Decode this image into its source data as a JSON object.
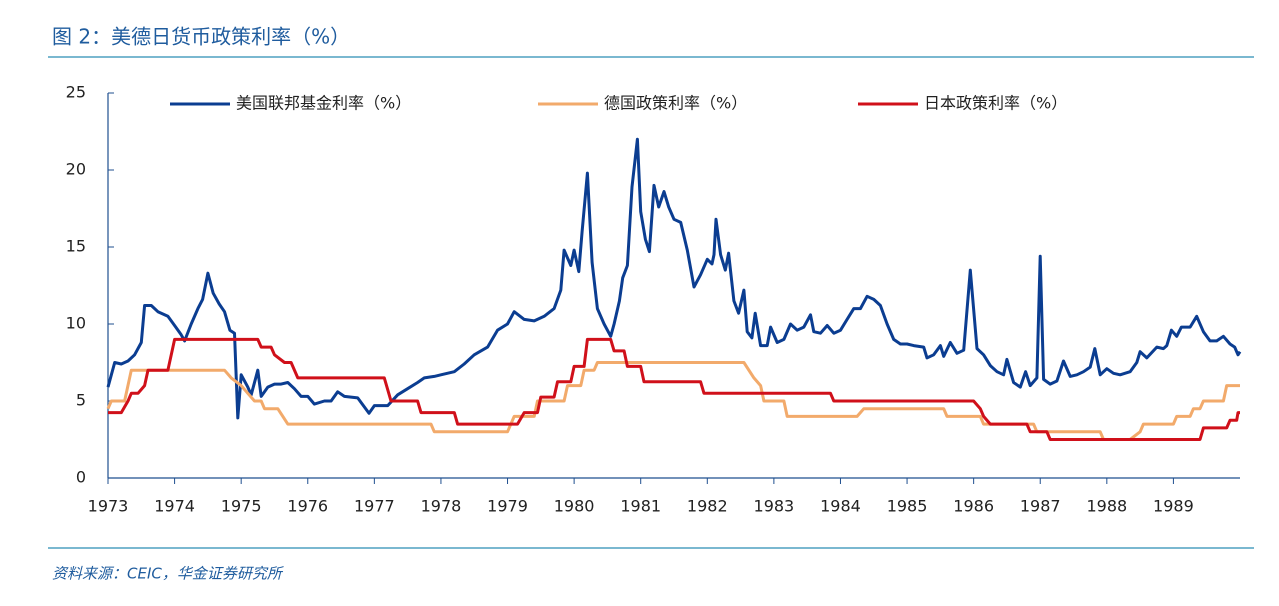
{
  "chart_data": {
    "type": "line",
    "title": "图 2：美德日货币政策利率（%）",
    "source": "资料来源：CEIC，华金证券研究所",
    "xlim": [
      1973,
      1990
    ],
    "xticks": [
      1973,
      1974,
      1975,
      1976,
      1977,
      1978,
      1979,
      1980,
      1981,
      1982,
      1983,
      1984,
      1985,
      1986,
      1987,
      1988,
      1989
    ],
    "ylim": [
      0,
      25
    ],
    "yticks": [
      0,
      5,
      10,
      15,
      20,
      25
    ],
    "grid": false,
    "legend": "top",
    "series": [
      {
        "name": "美国联邦基金利率（%）",
        "color": "#0b3d91",
        "x": [
          1973.0,
          1973.1,
          1973.2,
          1973.3,
          1973.4,
          1973.5,
          1973.55,
          1973.65,
          1973.75,
          1973.9,
          1974.0,
          1974.1,
          1974.15,
          1974.25,
          1974.35,
          1974.42,
          1974.5,
          1974.58,
          1974.67,
          1974.75,
          1974.83,
          1974.9,
          1974.95,
          1975.0,
          1975.1,
          1975.15,
          1975.25,
          1975.3,
          1975.4,
          1975.5,
          1975.6,
          1975.7,
          1975.8,
          1975.9,
          1976.0,
          1976.1,
          1976.25,
          1976.35,
          1976.45,
          1976.55,
          1976.75,
          1976.92,
          1977.0,
          1977.2,
          1977.35,
          1977.5,
          1977.65,
          1977.75,
          1977.9,
          1978.0,
          1978.2,
          1978.35,
          1978.5,
          1978.7,
          1978.85,
          1979.0,
          1979.1,
          1979.25,
          1979.4,
          1979.55,
          1979.7,
          1979.8,
          1979.85,
          1979.95,
          1980.0,
          1980.07,
          1980.12,
          1980.2,
          1980.27,
          1980.35,
          1980.45,
          1980.55,
          1980.6,
          1980.68,
          1980.73,
          1980.8,
          1980.87,
          1980.95,
          1981.0,
          1981.07,
          1981.13,
          1981.2,
          1981.27,
          1981.35,
          1981.42,
          1981.5,
          1981.6,
          1981.7,
          1981.8,
          1981.9,
          1982.0,
          1982.07,
          1982.1,
          1982.13,
          1982.2,
          1982.27,
          1982.32,
          1982.4,
          1982.47,
          1982.55,
          1982.6,
          1982.67,
          1982.72,
          1982.8,
          1982.9,
          1982.95,
          1983.05,
          1983.15,
          1983.25,
          1983.35,
          1983.45,
          1983.55,
          1983.6,
          1983.7,
          1983.8,
          1983.9,
          1984.0,
          1984.1,
          1984.2,
          1984.3,
          1984.4,
          1984.5,
          1984.6,
          1984.7,
          1984.8,
          1984.9,
          1985.0,
          1985.1,
          1985.25,
          1985.3,
          1985.4,
          1985.5,
          1985.55,
          1985.65,
          1985.75,
          1985.85,
          1985.95,
          1986.05,
          1986.15,
          1986.25,
          1986.35,
          1986.45,
          1986.5,
          1986.6,
          1986.7,
          1986.78,
          1986.85,
          1986.95,
          1987.0,
          1987.05,
          1987.15,
          1987.25,
          1987.35,
          1987.45,
          1987.55,
          1987.65,
          1987.75,
          1987.82,
          1987.9,
          1988.0,
          1988.1,
          1988.2,
          1988.35,
          1988.45,
          1988.5,
          1988.6,
          1988.75,
          1988.85,
          1988.9,
          1988.97,
          1989.05,
          1989.12,
          1989.25,
          1989.35,
          1989.45,
          1989.55,
          1989.65,
          1989.75,
          1989.85,
          1989.92,
          1989.97,
          1990.0
        ],
        "values": [
          5.9,
          7.5,
          7.4,
          7.6,
          8.0,
          8.8,
          11.2,
          11.2,
          10.8,
          10.5,
          9.9,
          9.3,
          8.9,
          10.0,
          11.0,
          11.6,
          13.3,
          12.0,
          11.3,
          10.8,
          9.6,
          9.4,
          3.9,
          6.7,
          5.9,
          5.4,
          7.0,
          5.3,
          5.9,
          6.1,
          6.1,
          6.2,
          5.8,
          5.3,
          5.3,
          4.8,
          5.0,
          5.0,
          5.6,
          5.3,
          5.2,
          4.2,
          4.7,
          4.7,
          5.4,
          5.8,
          6.2,
          6.5,
          6.6,
          6.7,
          6.9,
          7.4,
          8.0,
          8.5,
          9.6,
          10.0,
          10.8,
          10.3,
          10.2,
          10.5,
          11.0,
          12.2,
          14.8,
          13.8,
          14.8,
          13.4,
          16.0,
          19.8,
          14.0,
          11.0,
          10.0,
          9.2,
          10.0,
          11.5,
          13.0,
          13.8,
          18.9,
          22.0,
          17.3,
          15.5,
          14.7,
          19.0,
          17.6,
          18.6,
          17.6,
          16.8,
          16.6,
          14.8,
          12.4,
          13.2,
          14.2,
          13.9,
          14.5,
          16.8,
          14.5,
          13.5,
          14.6,
          11.5,
          10.7,
          12.2,
          9.5,
          9.1,
          10.7,
          8.6,
          8.6,
          9.8,
          8.8,
          9.0,
          10.0,
          9.6,
          9.8,
          10.6,
          9.5,
          9.4,
          9.9,
          9.4,
          9.6,
          10.3,
          11.0,
          11.0,
          11.8,
          11.6,
          11.2,
          10.0,
          9.0,
          8.7,
          8.7,
          8.6,
          8.5,
          7.8,
          8.0,
          8.6,
          7.9,
          8.8,
          8.1,
          8.3,
          13.5,
          8.4,
          8.0,
          7.3,
          6.9,
          6.7,
          7.7,
          6.2,
          5.9,
          6.9,
          6.0,
          6.5,
          14.4,
          6.4,
          6.1,
          6.3,
          7.6,
          6.6,
          6.7,
          6.9,
          7.2,
          8.4,
          6.7,
          7.1,
          6.8,
          6.7,
          6.9,
          7.5,
          8.2,
          7.8,
          8.5,
          8.4,
          8.6,
          9.6,
          9.2,
          9.8,
          9.8,
          10.5,
          9.5,
          8.9,
          8.9,
          9.2,
          8.7,
          8.5,
          8.0,
          8.2
        ]
      },
      {
        "name": "德国政策利率（%）",
        "color": "#f2aa6b",
        "x": [
          1973.0,
          1973.05,
          1973.25,
          1973.35,
          1974.75,
          1974.85,
          1975.0,
          1975.1,
          1975.2,
          1975.3,
          1975.35,
          1975.55,
          1975.7,
          1977.85,
          1977.9,
          1979.0,
          1979.1,
          1979.4,
          1979.45,
          1979.85,
          1979.9,
          1980.1,
          1980.15,
          1980.3,
          1980.35,
          1982.55,
          1982.7,
          1982.8,
          1982.85,
          1983.15,
          1983.2,
          1984.25,
          1984.35,
          1985.55,
          1985.6,
          1986.1,
          1986.15,
          1986.9,
          1986.95,
          1987.9,
          1987.95,
          1988.35,
          1988.5,
          1988.55,
          1989.0,
          1989.05,
          1989.25,
          1989.3,
          1989.4,
          1989.45,
          1989.75,
          1989.8,
          1990.0
        ],
        "values": [
          4.5,
          5.0,
          5.0,
          7.0,
          7.0,
          6.5,
          6.0,
          5.5,
          5.0,
          5.0,
          4.5,
          4.5,
          3.5,
          3.5,
          3.0,
          3.0,
          4.0,
          4.0,
          5.0,
          5.0,
          6.0,
          6.0,
          7.0,
          7.0,
          7.5,
          7.5,
          6.5,
          6.0,
          5.0,
          5.0,
          4.0,
          4.0,
          4.5,
          4.5,
          4.0,
          4.0,
          3.5,
          3.5,
          3.0,
          3.0,
          2.5,
          2.5,
          3.0,
          3.5,
          3.5,
          4.0,
          4.0,
          4.5,
          4.5,
          5.0,
          5.0,
          6.0,
          6.0
        ]
      },
      {
        "name": "日本政策利率（%）",
        "color": "#d0101a",
        "x": [
          1973.0,
          1973.2,
          1973.3,
          1973.35,
          1973.45,
          1973.55,
          1973.6,
          1973.9,
          1974.0,
          1975.25,
          1975.3,
          1975.45,
          1975.5,
          1975.65,
          1975.75,
          1975.85,
          1977.15,
          1977.25,
          1977.65,
          1977.7,
          1978.2,
          1978.25,
          1979.15,
          1979.25,
          1979.45,
          1979.5,
          1979.7,
          1979.75,
          1979.95,
          1980.0,
          1980.15,
          1980.2,
          1980.55,
          1980.6,
          1980.75,
          1980.8,
          1981.0,
          1981.05,
          1981.9,
          1981.95,
          1983.85,
          1983.9,
          1986.0,
          1986.1,
          1986.15,
          1986.25,
          1986.8,
          1986.85,
          1987.1,
          1987.15,
          1989.4,
          1989.45,
          1989.8,
          1989.85,
          1989.95,
          1989.97,
          1990.0
        ],
        "values": [
          4.25,
          4.25,
          5.0,
          5.5,
          5.5,
          6.0,
          7.0,
          7.0,
          9.0,
          9.0,
          8.5,
          8.5,
          8.0,
          7.5,
          7.5,
          6.5,
          6.5,
          5.0,
          5.0,
          4.25,
          4.25,
          3.5,
          3.5,
          4.25,
          4.25,
          5.25,
          5.25,
          6.25,
          6.25,
          7.25,
          7.25,
          9.0,
          9.0,
          8.25,
          8.25,
          7.25,
          7.25,
          6.25,
          6.25,
          5.5,
          5.5,
          5.0,
          5.0,
          4.5,
          4.0,
          3.5,
          3.5,
          3.0,
          3.0,
          2.5,
          2.5,
          3.25,
          3.25,
          3.75,
          3.75,
          4.25,
          4.25
        ]
      }
    ]
  }
}
